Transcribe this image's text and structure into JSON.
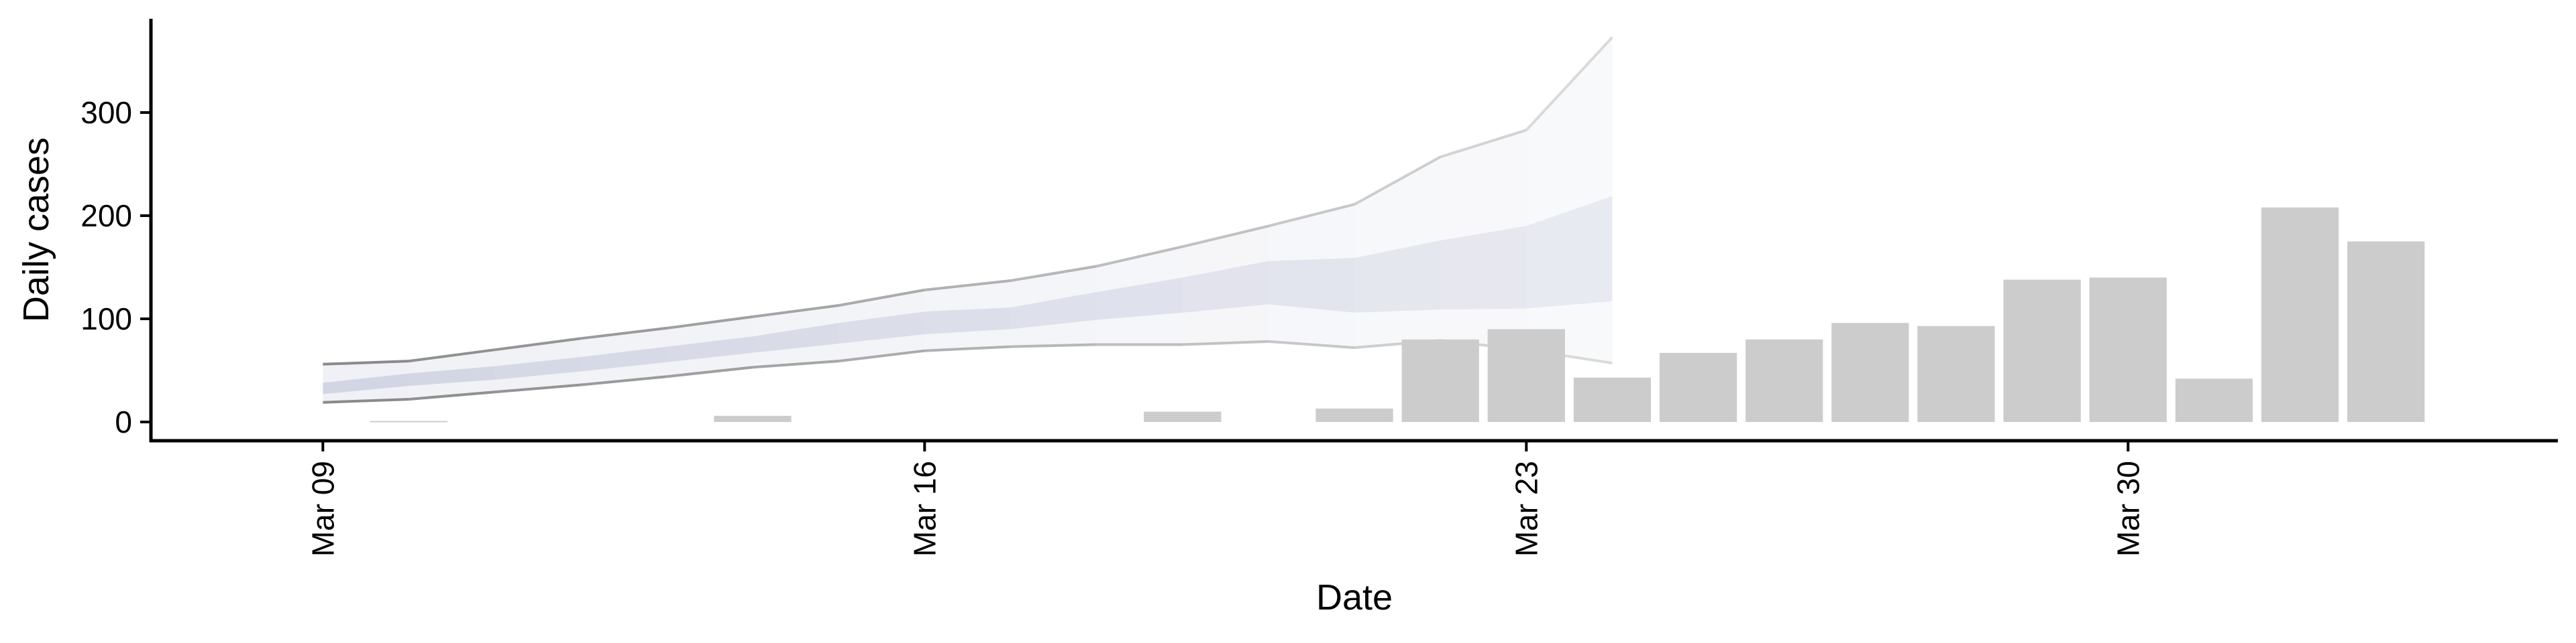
{
  "chart_data": {
    "type": "bar",
    "title": "",
    "xlabel": "Date",
    "ylabel": "Daily cases",
    "x_axis": {
      "scale": "date",
      "range": [
        "2020-03-07",
        "2020-04-04"
      ],
      "ticks": [
        {
          "date": "2020-03-09",
          "label": "Mar 09"
        },
        {
          "date": "2020-03-16",
          "label": "Mar 16"
        },
        {
          "date": "2020-03-23",
          "label": "Mar 23"
        },
        {
          "date": "2020-03-30",
          "label": "Mar 30"
        }
      ],
      "tick_label_rotation": "vertical"
    },
    "y_axis": {
      "range": [
        -15,
        390
      ],
      "ticks": [
        0,
        100,
        200,
        300
      ]
    },
    "grid": false,
    "legend": "none",
    "series": [
      {
        "type": "bar",
        "color": "#cccccc",
        "x": [
          "2020-03-10",
          "2020-03-11",
          "2020-03-12",
          "2020-03-13",
          "2020-03-14",
          "2020-03-15",
          "2020-03-16",
          "2020-03-17",
          "2020-03-18",
          "2020-03-19",
          "2020-03-20",
          "2020-03-21",
          "2020-03-22",
          "2020-03-23",
          "2020-03-24",
          "2020-03-25",
          "2020-03-26",
          "2020-03-27",
          "2020-03-28",
          "2020-03-29",
          "2020-03-30",
          "2020-03-31",
          "2020-04-01",
          "2020-04-02"
        ],
        "values": [
          1,
          0,
          0,
          0,
          6,
          0,
          0,
          0,
          0,
          10,
          0,
          13,
          80,
          90,
          43,
          67,
          80,
          96,
          93,
          138,
          140,
          42,
          208,
          175
        ]
      },
      {
        "type": "ribbon",
        "band": "90%",
        "color": "#dde0ea",
        "x": [
          "2020-03-09",
          "2020-03-10",
          "2020-03-11",
          "2020-03-12",
          "2020-03-13",
          "2020-03-14",
          "2020-03-15",
          "2020-03-16",
          "2020-03-17",
          "2020-03-18",
          "2020-03-19",
          "2020-03-20",
          "2020-03-21",
          "2020-03-22",
          "2020-03-23",
          "2020-03-24"
        ],
        "lower": [
          19,
          22,
          29,
          36,
          44,
          53,
          59,
          69,
          73,
          75,
          75,
          78,
          72,
          79,
          70,
          57
        ],
        "upper": [
          56,
          59,
          70,
          81,
          91,
          102,
          113,
          128,
          137,
          151,
          170,
          190,
          211,
          257,
          283,
          373
        ]
      },
      {
        "type": "ribbon",
        "band": "50%",
        "color": "#b9bed4",
        "x": [
          "2020-03-09",
          "2020-03-10",
          "2020-03-11",
          "2020-03-12",
          "2020-03-13",
          "2020-03-14",
          "2020-03-15",
          "2020-03-16",
          "2020-03-17",
          "2020-03-18",
          "2020-03-19",
          "2020-03-20",
          "2020-03-21",
          "2020-03-22",
          "2020-03-23",
          "2020-03-24"
        ],
        "lower": [
          27,
          35,
          41,
          49,
          58,
          67,
          76,
          85,
          90,
          99,
          106,
          114,
          106,
          109,
          110,
          117
        ],
        "upper": [
          38,
          47,
          54,
          63,
          73,
          83,
          96,
          107,
          111,
          126,
          140,
          156,
          159,
          176,
          190,
          219
        ]
      }
    ]
  }
}
